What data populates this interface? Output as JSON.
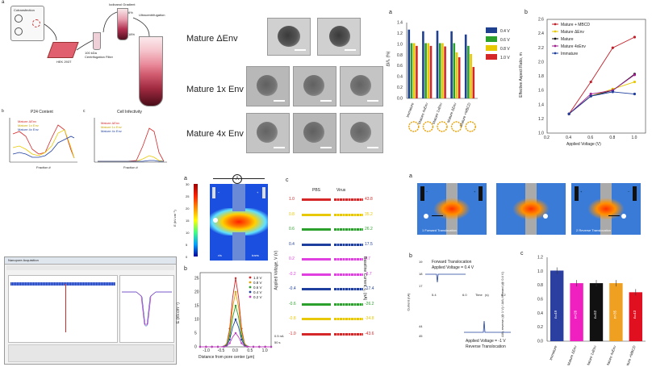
{
  "panelA_workflow": {
    "label": "a",
    "steps": [
      "Cotransfection",
      "HEK 293T",
      "100 kDa Centrifugation Filter",
      "Iodixanol Gradient",
      "Ultracentrifugation"
    ],
    "gradient_marks": [
      "6%",
      "18%"
    ]
  },
  "panelB_p24": {
    "label": "b",
    "title": "P24 Content",
    "xlabel": "Fraction #",
    "ylabel": "Intensity (A.U.)",
    "legend": [
      "Mature ΔEnv",
      "Mature 1x Env",
      "Mature 4x Env"
    ]
  },
  "panelC_infect": {
    "label": "c",
    "title": "Cell Infectivity",
    "xlabel": "Fraction #",
    "ylabel": "Intensity (A.U.)",
    "legend": [
      "Mature ΔEnv",
      "Mature 1x Env",
      "Mature 4x Env"
    ]
  },
  "tem": {
    "rows": [
      "Mature ΔEnv",
      "Mature 1x Env",
      "Mature 4x Env"
    ]
  },
  "bars_top": {
    "label": "a",
    "ylabel": "ΔI/I₀ (%)",
    "legend": [
      "0.4 V",
      "0.6 V",
      "0.8 V",
      "1.0 V"
    ],
    "chart_data": {
      "type": "bar",
      "categories": [
        "Immature",
        "Mature 4xEnv",
        "Mature 1xEnv",
        "Mature ΔEnv",
        "Mature +MBCD"
      ],
      "ylim": [
        0,
        1.4
      ],
      "yticks": [
        "0.0",
        "0.2",
        "0.4",
        "0.6",
        "0.8",
        "1.0",
        "1.2",
        "1.4"
      ],
      "series": [
        {
          "name": "0.4 V",
          "values": [
            1.27,
            1.24,
            1.25,
            1.24,
            1.18
          ],
          "color": "#1f3f8f"
        },
        {
          "name": "0.6 V",
          "values": [
            1.02,
            1.02,
            1.02,
            1.02,
            0.97
          ],
          "color": "#2ca02c"
        },
        {
          "name": "0.8 V",
          "values": [
            1.02,
            1.02,
            1.02,
            0.85,
            0.82
          ],
          "color": "#e8c800"
        },
        {
          "name": "1.0 V",
          "values": [
            0.97,
            0.97,
            0.96,
            0.76,
            0.58
          ],
          "color": "#d62728"
        }
      ]
    }
  },
  "line_top": {
    "label": "b",
    "ylabel": "Effective Aspect Ratio, m",
    "xlabel": "Applied Voltage (V)",
    "chart_data": {
      "type": "line",
      "x": [
        0.4,
        0.6,
        0.8,
        1.0
      ],
      "xticks": [
        "0.2",
        "0.4",
        "0.6",
        "0.8",
        "1.0"
      ],
      "yticks": [
        "1.0",
        "1.2",
        "1.4",
        "1.6",
        "1.8",
        "2.0",
        "2.2",
        "2.4",
        "2.6"
      ],
      "xlim": [
        0.2,
        1.1
      ],
      "ylim": [
        1.0,
        2.6
      ],
      "series": [
        {
          "name": "Mature + MBCD",
          "values": [
            1.27,
            1.72,
            2.2,
            2.35
          ],
          "color": "#c0202a"
        },
        {
          "name": "Mature ΔEnv",
          "values": [
            1.27,
            1.52,
            1.62,
            1.72
          ],
          "color": "#e8c800"
        },
        {
          "name": "Mature",
          "values": [
            1.27,
            1.52,
            1.6,
            1.83
          ],
          "color": "#111111"
        },
        {
          "name": "Mature 4xEnv",
          "values": [
            1.27,
            1.55,
            1.6,
            1.82
          ],
          "color": "#a0208f"
        },
        {
          "name": "Immature",
          "values": [
            1.27,
            1.52,
            1.58,
            1.55
          ],
          "color": "#1f3f9f"
        }
      ]
    }
  },
  "field": {
    "label": "a",
    "ylabel": "E (kV.cm⁻¹)",
    "scale": [
      "30",
      "25",
      "20",
      "15",
      "10",
      "5",
      "0"
    ],
    "meter": "A",
    "cis": "cis",
    "trans": "trans",
    "minus": "−",
    "plus": "+"
  },
  "efield_plot": {
    "label": "b",
    "ylabel": "E (kV.cm⁻¹)",
    "xlabel": "Distance from pore center (μm)",
    "legend": [
      "1.0 V",
      "0.8 V",
      "0.6 V",
      "0.4 V",
      "0.2 V"
    ],
    "chart_data": {
      "type": "line",
      "x": [
        -1.0,
        -0.5,
        0.0,
        0.5,
        1.0
      ],
      "xticks": [
        "-1.0",
        "-0.5",
        "0.0",
        "0.5",
        "1.0"
      ],
      "yticks": [
        "0",
        "5",
        "10",
        "15",
        "20",
        "25"
      ],
      "ylim": [
        0,
        27
      ],
      "series": [
        {
          "name": "1.0 V",
          "peak": 25,
          "color": "#d62728"
        },
        {
          "name": "0.8 V",
          "peak": 20,
          "color": "#e8a000"
        },
        {
          "name": "0.6 V",
          "peak": 15,
          "color": "#2ca02c"
        },
        {
          "name": "0.4 V",
          "peak": 10,
          "color": "#1f3f9f"
        },
        {
          "name": "0.2 V",
          "peak": 5,
          "color": "#c040c0"
        }
      ]
    }
  },
  "traces": {
    "label": "c",
    "col_pbs": "PBS",
    "col_virus": "Virus",
    "ylabel": "Applied Voltage, V (V)",
    "ylabel_right": "Baseline Current, I₀ (nA)",
    "scale_y": "0.5 nA",
    "scale_x": "50 s",
    "rows": [
      {
        "v": "1.0",
        "i": "43.8",
        "color": "#d62728"
      },
      {
        "v": "0.8",
        "i": "35.2",
        "color": "#e8c800"
      },
      {
        "v": "0.6",
        "i": "26.2",
        "color": "#2ca02c"
      },
      {
        "v": "0.4",
        "i": "17.5",
        "color": "#1f3f9f"
      },
      {
        "v": "0.2",
        "i": "8.7",
        "color": "#e040e0"
      },
      {
        "v": "-0.2",
        "i": "-8.7",
        "color": "#e040e0"
      },
      {
        "v": "-0.4",
        "i": "-17.4",
        "color": "#1f3f9f"
      },
      {
        "v": "-0.6",
        "i": "-26.2",
        "color": "#2ca02c"
      },
      {
        "v": "-0.8",
        "i": "-34.8",
        "color": "#e8c800"
      },
      {
        "v": "-1.0",
        "i": "-43.6",
        "color": "#d62728"
      }
    ]
  },
  "sim": {
    "label": "a",
    "captions": [
      "1 Forward Translocation",
      "2 Reverse Translocation"
    ],
    "minus": "−",
    "plus": "+"
  },
  "transloc": {
    "label": "b",
    "ylabel": "Current (nA)",
    "forward_title": "Forward Translocation",
    "forward_v": "Applied Voltage = 0.4 V",
    "reverse_v": "Applied Voltage = -1 V",
    "reverse_title": "Reverse Translocation",
    "yticks_top": [
      "19",
      "18",
      "17"
    ],
    "yticks_bot": [
      "44",
      "45"
    ],
    "xticks": [
      "5.4",
      "6.0",
      "6.2"
    ],
    "xunit": "(s)",
    "xmid": "Time"
  },
  "ratio_bars": {
    "label": "c",
    "ylabel": "ΔI/I₀ reverse (@ 1 V) / ΔI/I₀ forward (@ 0.4 V)",
    "chart_data": {
      "type": "bar",
      "categories": [
        "Immature",
        "Mature ΔEnv",
        "Mature 1xEnv",
        "Mature 4xEnv",
        "Mature +MBCD"
      ],
      "values": [
        1.01,
        0.83,
        0.83,
        0.83,
        0.7
      ],
      "n": [
        "n=49",
        "n=26",
        "n=52",
        "n=35",
        "n=43"
      ],
      "colors": [
        "#2a3f9f",
        "#f020c0",
        "#111111",
        "#f0a020",
        "#e01020"
      ],
      "ylim": [
        0,
        1.2
      ],
      "yticks": [
        "0.0",
        "0.2",
        "0.4",
        "0.6",
        "0.8",
        "1.0",
        "1.2"
      ]
    }
  },
  "software": {
    "title": "Nanopore Acquisition"
  }
}
